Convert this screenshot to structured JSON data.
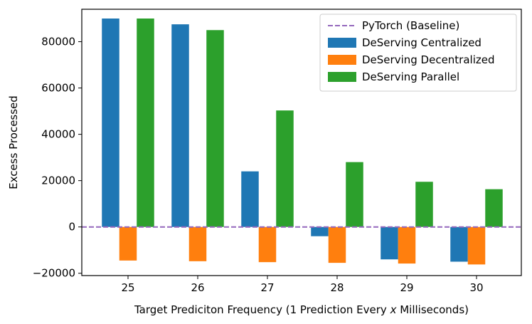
{
  "chart_data": {
    "type": "bar",
    "xlabel_prefix": "Target Prediciton Frequency (1 Prediction Every ",
    "xlabel_var": "x",
    "xlabel_suffix": " Milliseconds)",
    "ylabel": "Excess Processed",
    "categories": [
      "25",
      "26",
      "27",
      "28",
      "29",
      "30"
    ],
    "ylim": [
      -21000,
      94000
    ],
    "yticks": [
      -20000,
      0,
      20000,
      40000,
      60000,
      80000
    ],
    "ytick_labels": [
      "−20000",
      "0",
      "20000",
      "40000",
      "60000",
      "80000"
    ],
    "baseline": {
      "name": "PyTorch (Baseline)",
      "value": 0,
      "color": "#9467bd",
      "style": "dashed"
    },
    "series": [
      {
        "name": "DeServing Centralized",
        "color": "#1f77b4",
        "values": [
          90000,
          87500,
          24000,
          -4000,
          -14000,
          -15000
        ]
      },
      {
        "name": "DeServing Decentralized",
        "color": "#ff7f0e",
        "values": [
          -14500,
          -14800,
          -15200,
          -15500,
          -15800,
          -16200
        ]
      },
      {
        "name": "DeServing Parallel",
        "color": "#2ca02c",
        "values": [
          90000,
          85000,
          50300,
          28000,
          19500,
          16300
        ]
      }
    ],
    "legend_position": "top-right",
    "grid": false
  }
}
